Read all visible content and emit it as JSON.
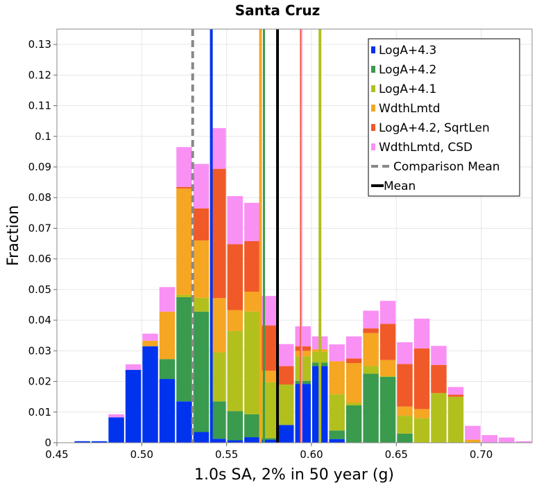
{
  "chart_data": {
    "type": "bar",
    "stacked": true,
    "title": "Santa Cruz",
    "xlabel": "1.0s SA, 2% in 50 year (g)",
    "ylabel": "Fraction",
    "xlim": [
      0.45,
      0.73
    ],
    "ylim": [
      0,
      0.135
    ],
    "bin_width": 0.01,
    "grid": true,
    "legend_position": "top-right",
    "x_ticks": [
      0.45,
      0.5,
      0.55,
      0.6,
      0.65,
      0.7
    ],
    "x_tick_labels": [
      "0.45",
      "0.50",
      "0.55",
      "0.60",
      "0.65",
      "0.70"
    ],
    "y_ticks": [
      0,
      0.01,
      0.02,
      0.03,
      0.04,
      0.05,
      0.06,
      0.07,
      0.08,
      0.09,
      0.1,
      0.11,
      0.12,
      0.13
    ],
    "y_tick_labels": [
      "0",
      "0.01",
      "0.02",
      "0.03",
      "0.04",
      "0.05",
      "0.06",
      "0.07",
      "0.08",
      "0.09",
      "0.1",
      "0.11",
      "0.12",
      "0.13"
    ],
    "bin_centers": [
      0.465,
      0.475,
      0.485,
      0.495,
      0.505,
      0.515,
      0.525,
      0.535,
      0.545,
      0.555,
      0.565,
      0.575,
      0.585,
      0.595,
      0.605,
      0.615,
      0.625,
      0.635,
      0.645,
      0.655,
      0.665,
      0.675,
      0.685,
      0.695,
      0.705,
      0.715,
      0.725
    ],
    "series": [
      {
        "name": "LogA+4.3",
        "color": "#0033ee",
        "values": [
          0.0005,
          0.0005,
          0.0083,
          0.0238,
          0.0315,
          0.0208,
          0.0135,
          0.0035,
          0.0013,
          0.0008,
          0.0018,
          0.001,
          0.0058,
          0.0192,
          0.025,
          0.0012,
          0,
          0,
          0,
          0,
          0,
          0,
          0,
          0,
          0,
          0,
          0
        ]
      },
      {
        "name": "LogA+4.2",
        "color": "#3a9a4e",
        "values": [
          0,
          0,
          0,
          0,
          0,
          0.0065,
          0.034,
          0.0393,
          0.0122,
          0.0095,
          0.0075,
          0.0005,
          0,
          0.001,
          0.0012,
          0.0028,
          0.0122,
          0.0225,
          0.0215,
          0.003,
          0,
          0,
          0,
          0,
          0,
          0,
          0
        ]
      },
      {
        "name": "LogA+4.1",
        "color": "#b2c01e",
        "values": [
          0,
          0,
          0,
          0,
          0,
          0,
          0.0008,
          0.0045,
          0.016,
          0.0262,
          0.0335,
          0.0182,
          0.0132,
          0.008,
          0.0035,
          0.0118,
          0.0008,
          0.0025,
          0.0002,
          0.0058,
          0.008,
          0.0162,
          0.015,
          0,
          0,
          0,
          0
        ]
      },
      {
        "name": "WdthLmtd",
        "color": "#f5a623",
        "values": [
          0,
          0,
          0,
          0,
          0.0018,
          0.0155,
          0.0347,
          0.0187,
          0.0177,
          0.0068,
          0.0065,
          0.0038,
          0,
          0.0018,
          0.0008,
          0.0108,
          0.013,
          0.0108,
          0.0053,
          0.003,
          0.003,
          0,
          0,
          0.001,
          0,
          0,
          0
        ]
      },
      {
        "name": "LogA+4.2, SqrtLen",
        "color": "#f05a28",
        "values": [
          0,
          0,
          0,
          0,
          0,
          0,
          0.0005,
          0.0105,
          0.0422,
          0.0215,
          0.0165,
          0.0148,
          0.006,
          0.0015,
          0,
          0,
          0.0015,
          0.0015,
          0.0118,
          0.0139,
          0.0198,
          0.0092,
          0.0007,
          0,
          0,
          0,
          0
        ]
      },
      {
        "name": "WdthLmtd, CSD",
        "color": "#f990f4",
        "values": [
          0,
          0,
          0.001,
          0.0018,
          0.0023,
          0.008,
          0.013,
          0.0145,
          0.0133,
          0.0157,
          0.0125,
          0.0096,
          0.0072,
          0.0065,
          0.0042,
          0.0055,
          0.0072,
          0.0058,
          0.0075,
          0.0071,
          0.0097,
          0.0062,
          0.0025,
          0.0045,
          0.0025,
          0.0017,
          0.0005
        ]
      }
    ],
    "vertical_lines": [
      {
        "name": "LogA+4.3 mean",
        "x": 0.541,
        "color": "#0033ee",
        "width": 4,
        "dashed": false
      },
      {
        "name": "WdthLmtd mean",
        "x": 0.57,
        "color": "#f5a623",
        "width": 4,
        "dashed": false
      },
      {
        "name": "LogA+4.2 mean",
        "x": 0.572,
        "color": "#3a9a4e",
        "width": 3,
        "dashed": false
      },
      {
        "name": "WdthLmtd, CSD mean",
        "x": 0.594,
        "color": "#f990f4",
        "width": 3,
        "dashed": false
      },
      {
        "name": "LogA+4.2, SqrtLen mean",
        "x": 0.5935,
        "color": "#f05a28",
        "width": 1.5,
        "dashed": false
      },
      {
        "name": "LogA+4.1 mean",
        "x": 0.605,
        "color": "#b2c01e",
        "width": 4,
        "dashed": false
      },
      {
        "name": "Comparison Mean",
        "x": 0.53,
        "color": "#888888",
        "width": 4,
        "dashed": true
      },
      {
        "name": "Mean",
        "x": 0.58,
        "color": "#000000",
        "width": 4,
        "dashed": false
      }
    ],
    "legend": [
      {
        "label": "LogA+4.3",
        "kind": "box",
        "color": "#0033ee"
      },
      {
        "label": "LogA+4.2",
        "kind": "box",
        "color": "#3a9a4e"
      },
      {
        "label": "LogA+4.1",
        "kind": "box",
        "color": "#b2c01e"
      },
      {
        "label": "WdthLmtd",
        "kind": "box",
        "color": "#f5a623"
      },
      {
        "label": "LogA+4.2, SqrtLen",
        "kind": "box",
        "color": "#f05a28"
      },
      {
        "label": "WdthLmtd, CSD",
        "kind": "box",
        "color": "#f990f4"
      },
      {
        "label": "Comparison Mean",
        "kind": "dash",
        "color": "#888888"
      },
      {
        "label": "Mean",
        "kind": "line",
        "color": "#000000"
      }
    ]
  }
}
